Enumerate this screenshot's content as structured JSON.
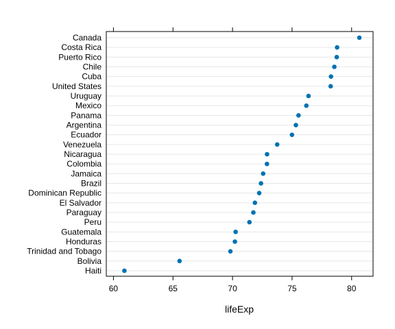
{
  "chart_data": {
    "type": "scatter",
    "xlabel": "lifeExp",
    "ylabel": "",
    "xlim": [
      59.4,
      81.8
    ],
    "xticks": [
      60,
      65,
      70,
      75,
      80
    ],
    "grid": true,
    "point_color": "#0072b2",
    "categories": [
      "Canada",
      "Costa Rica",
      "Puerto Rico",
      "Chile",
      "Cuba",
      "United States",
      "Uruguay",
      "Mexico",
      "Panama",
      "Argentina",
      "Ecuador",
      "Venezuela",
      "Nicaragua",
      "Colombia",
      "Jamaica",
      "Brazil",
      "Dominican Republic",
      "El Salvador",
      "Paraguay",
      "Peru",
      "Guatemala",
      "Honduras",
      "Trinidad and Tobago",
      "Bolivia",
      "Haiti"
    ],
    "values": [
      80.65,
      78.78,
      78.75,
      78.55,
      78.27,
      78.24,
      76.38,
      76.2,
      75.54,
      75.32,
      74.99,
      73.75,
      72.9,
      72.89,
      72.57,
      72.39,
      72.24,
      71.88,
      71.75,
      71.42,
      70.26,
      70.2,
      69.82,
      65.55,
      60.92
    ]
  }
}
